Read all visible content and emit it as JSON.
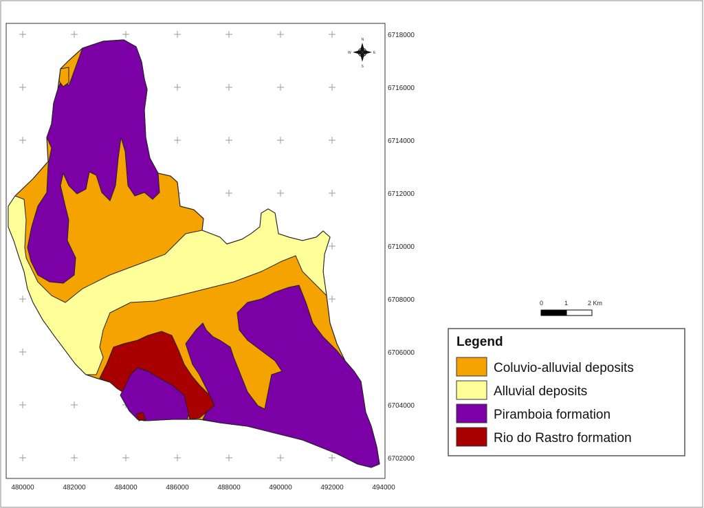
{
  "map": {
    "x_ticks": [
      "480000",
      "482000",
      "484000",
      "486000",
      "488000",
      "490000",
      "492000",
      "494000"
    ],
    "y_ticks": [
      "6718000",
      "6716000",
      "6714000",
      "6712000",
      "6710000",
      "6708000",
      "6706000",
      "6704000",
      "6702000"
    ],
    "north_arrow": {
      "n": "N",
      "s": "S",
      "e": "E",
      "w": "W"
    },
    "scale_bar": {
      "labels": [
        "0",
        "1",
        "2 Km"
      ]
    },
    "legend": {
      "title": "Legend",
      "items": [
        {
          "label": "Coluvio-alluvial deposits",
          "color": "#f5a300"
        },
        {
          "label": "Alluvial deposits",
          "color": "#ffff9a"
        },
        {
          "label": "Piramboia formation",
          "color": "#7b00a6"
        },
        {
          "label": "Rio do Rastro formation",
          "color": "#a80000"
        }
      ]
    }
  }
}
